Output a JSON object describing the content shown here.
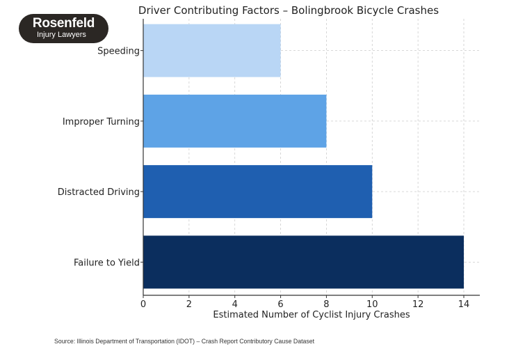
{
  "logo": {
    "name": "Rosenfeld",
    "tagline": "Injury Lawyers"
  },
  "chart_data": {
    "type": "bar",
    "orientation": "horizontal",
    "title": "Driver Contributing Factors – Bolingbrook Bicycle Crashes",
    "xlabel": "Estimated Number of Cyclist Injury Crashes",
    "ylabel": "",
    "categories": [
      "Speeding",
      "Improper Turning",
      "Distracted Driving",
      "Failure to Yield"
    ],
    "values": [
      6,
      8,
      10,
      14
    ],
    "colors": [
      "#b9d6f5",
      "#5ea3e6",
      "#1f5fb0",
      "#0b2e5e"
    ],
    "xlim": [
      0,
      14.7
    ],
    "xticks": [
      0,
      2,
      4,
      6,
      8,
      10,
      12,
      14
    ],
    "grid": true
  },
  "source": "Source: Illinois Department of Transportation (IDOT) – Crash Report Contributory Cause Dataset"
}
